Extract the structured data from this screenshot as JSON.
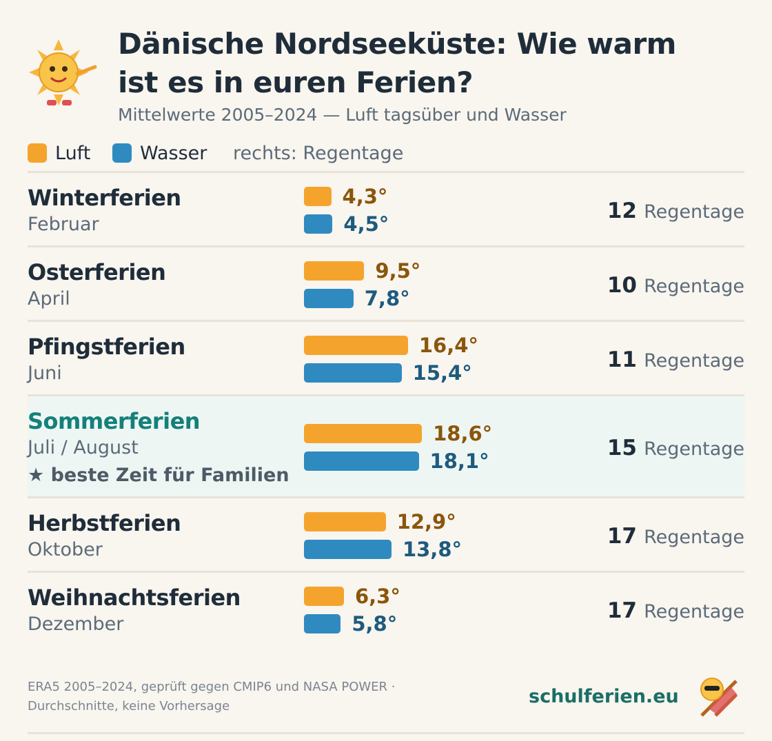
{
  "chart_data": {
    "type": "bar",
    "orientation": "horizontal",
    "title": "Dänische Nordseeküste: Wie warm ist es in euren Ferien?",
    "subtitle": "Mittelwerte 2005–2024 — Luft tagsüber und Wasser",
    "legend_note": "rechts: Regentage",
    "categories": [
      "Winterferien",
      "Osterferien",
      "Pfingstferien",
      "Sommerferien",
      "Herbstferien",
      "Weihnachtsferien"
    ],
    "periods": [
      "Februar",
      "April",
      "Juni",
      "Juli / August",
      "Oktober",
      "Dezember"
    ],
    "highlight_index": 3,
    "highlight_note": "★ beste Zeit für Familien",
    "series": [
      {
        "name": "Luft",
        "color": "#f4a42c",
        "label_color": "#8a560c",
        "values": [
          4.3,
          9.5,
          16.4,
          18.6,
          12.9,
          6.3
        ],
        "value_labels": [
          "4,3°",
          "9,5°",
          "16,4°",
          "18,6°",
          "12,9°",
          "6,3°"
        ]
      },
      {
        "name": "Wasser",
        "color": "#2f8ac0",
        "label_color": "#1d5b7e",
        "values": [
          4.5,
          7.8,
          15.4,
          18.1,
          13.8,
          5.8
        ],
        "value_labels": [
          "4,5°",
          "7,8°",
          "15,4°",
          "18,1°",
          "13,8°",
          "5,8°"
        ]
      }
    ],
    "rain_days": {
      "name": "Regentage",
      "values": [
        12,
        10,
        11,
        15,
        17,
        17
      ]
    },
    "footer": [
      "ERA5 2005–2024, geprüft gegen CMIP6 und NASA POWER ·",
      "Durchschnitte, keine Vorhersage"
    ],
    "brand": "schulferien.eu"
  }
}
